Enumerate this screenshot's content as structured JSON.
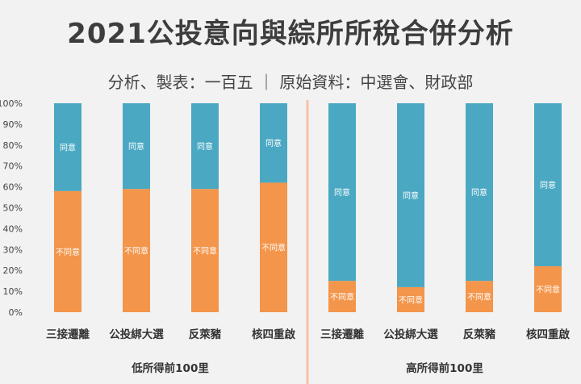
{
  "title": "2021公投意向與綜所所稅合併分析",
  "subtitle": "分析、製表：一百五 ｜ 原始資料：中選會、財政部",
  "colors": {
    "agree": "#4aa8c3",
    "disagree": "#f3954a",
    "divider": "#f6c2a8",
    "background": "#f2f2f2"
  },
  "chart_data": {
    "type": "bar",
    "stacked": true,
    "normalized": true,
    "ylim": [
      0,
      100
    ],
    "y_ticks": [
      "0%",
      "10%",
      "20%",
      "30%",
      "40%",
      "50%",
      "60%",
      "70%",
      "80%",
      "90%",
      "100%"
    ],
    "categories": [
      "三接遷離",
      "公投綁大選",
      "反萊豬",
      "核四重啟"
    ],
    "series_labels": {
      "agree": "同意",
      "disagree": "不同意"
    },
    "groups": [
      {
        "label": "低所得前100里",
        "disagree": [
          58,
          59,
          59,
          62
        ],
        "agree": [
          42,
          41,
          41,
          38
        ]
      },
      {
        "label": "高所得前100里",
        "disagree": [
          15,
          12,
          15,
          22
        ],
        "agree": [
          85,
          88,
          85,
          78
        ]
      }
    ]
  }
}
